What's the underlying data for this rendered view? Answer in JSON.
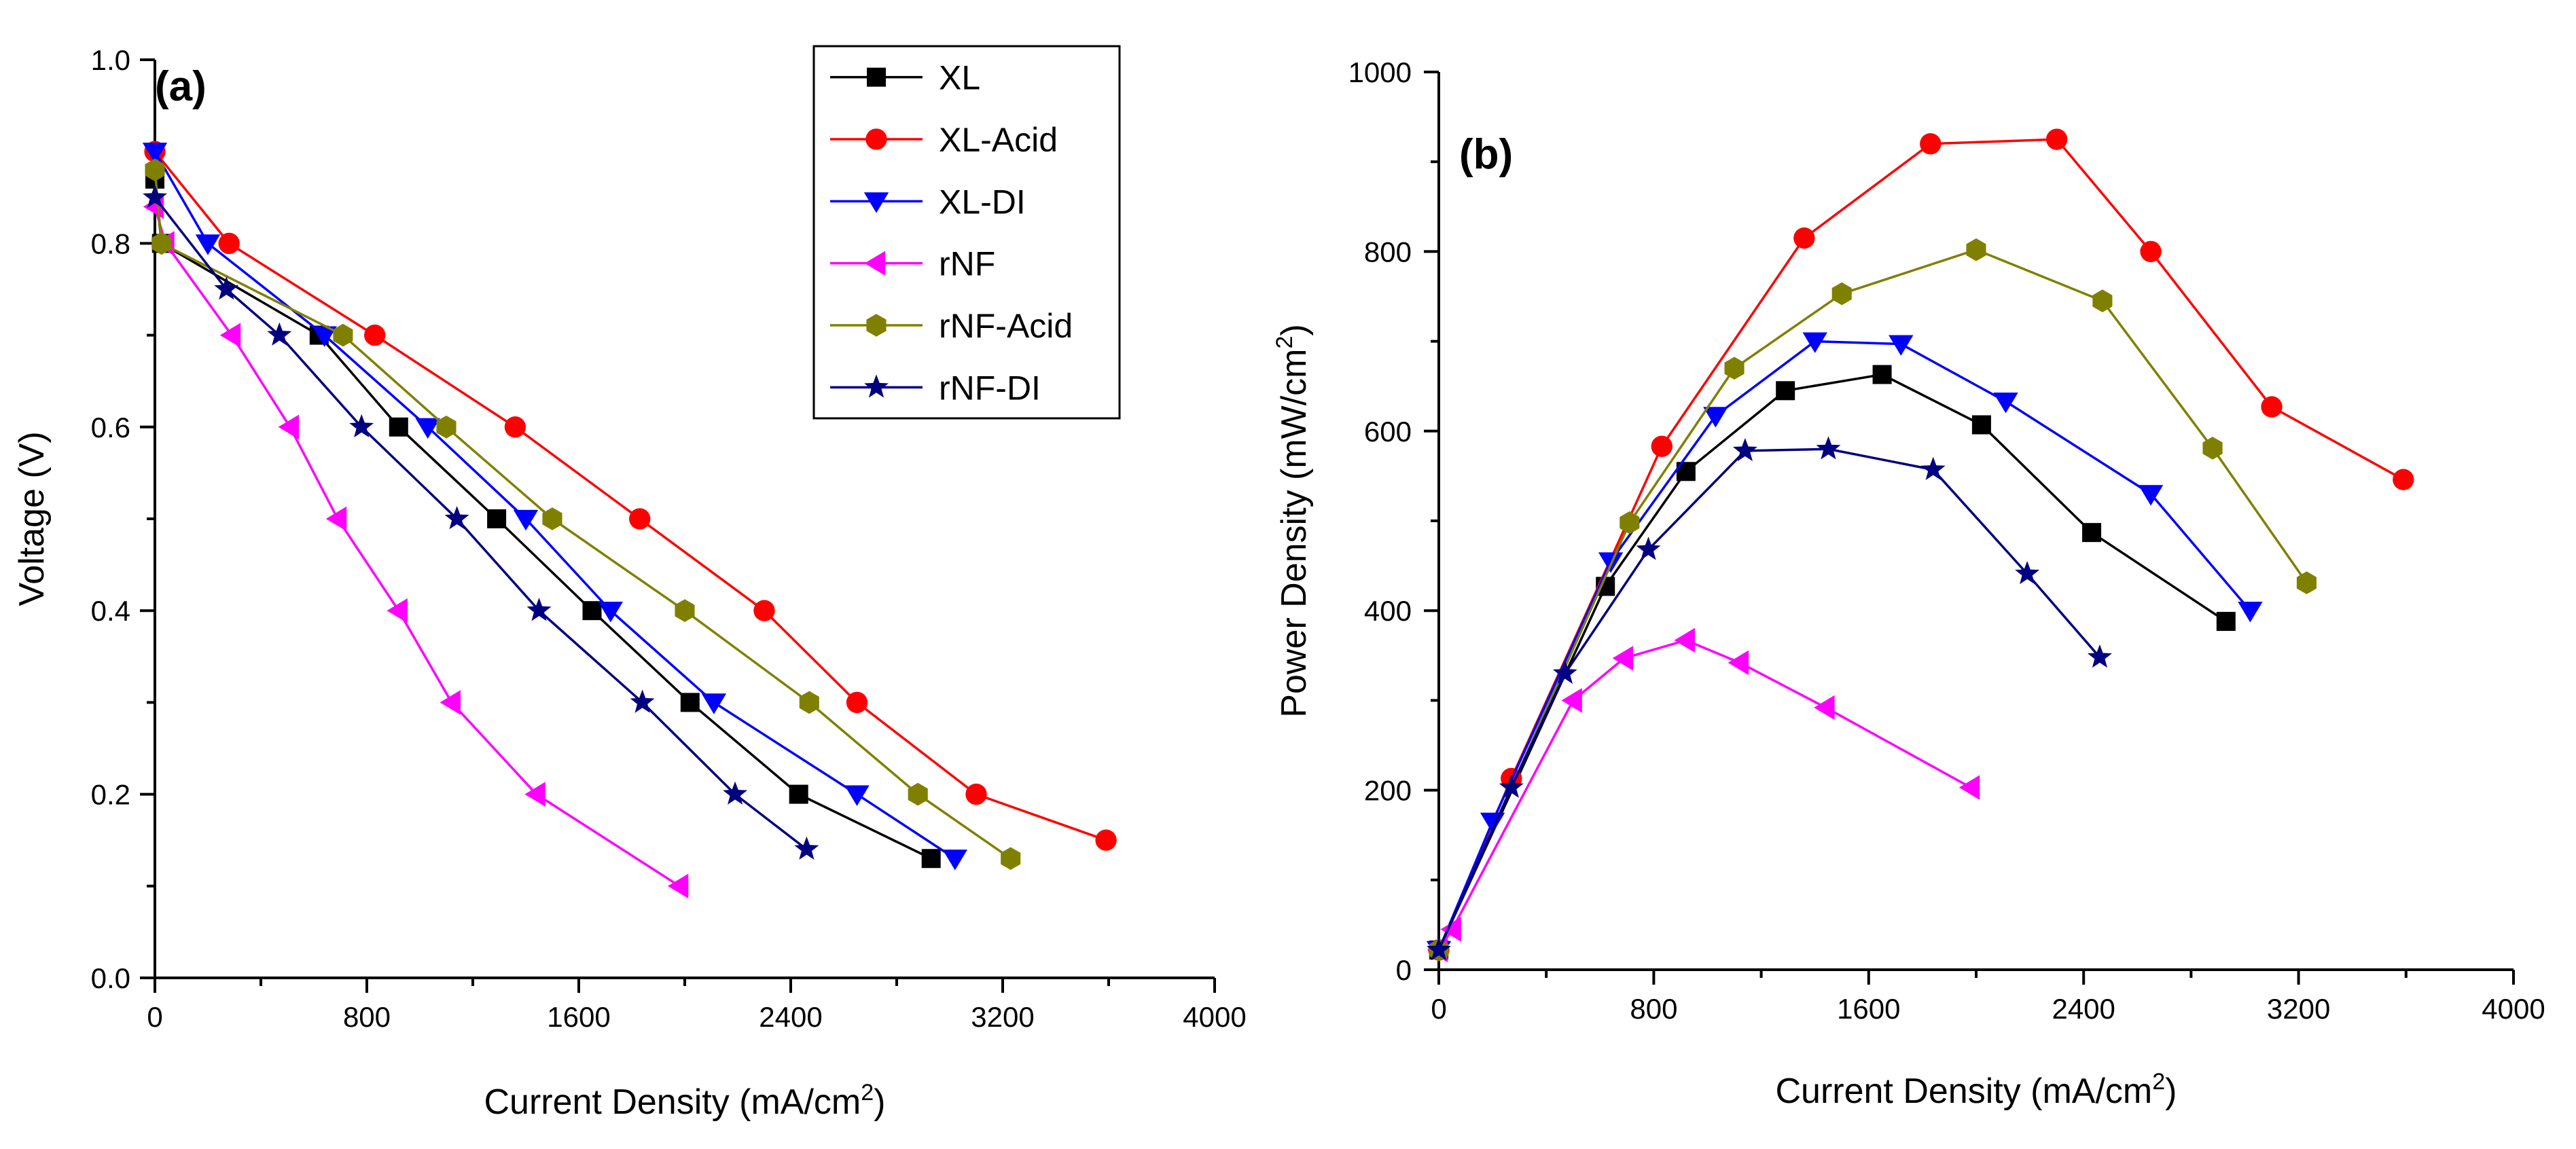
{
  "chart_data": [
    {
      "type": "line",
      "panel_label": "(a)",
      "xlabel": "Current Density (mA/cm",
      "xlabel_sup": "2",
      "xlabel_end": ")",
      "ylabel": "Voltage (V)",
      "xlim": [
        0,
        4000
      ],
      "ylim": [
        0,
        1.0
      ],
      "xticks": [
        "0",
        "800",
        "1600",
        "2400",
        "3200",
        "4000"
      ],
      "yticks": [
        "0.0",
        "0.2",
        "0.4",
        "0.6",
        "0.8",
        "1.0"
      ],
      "grid": false,
      "legend": "top-right",
      "series": [
        {
          "name": "XL",
          "color": "#000000",
          "marker": "square",
          "x": [
            0,
            25,
            620,
            920,
            1290,
            1650,
            2020,
            2430,
            2930
          ],
          "y": [
            0.87,
            0.8,
            0.7,
            0.6,
            0.5,
            0.4,
            0.3,
            0.2,
            0.13
          ]
        },
        {
          "name": "XL-Acid",
          "color": "#ff0000",
          "marker": "circle",
          "x": [
            0,
            280,
            830,
            1360,
            1830,
            2300,
            2650,
            3100,
            3590
          ],
          "y": [
            0.9,
            0.8,
            0.7,
            0.6,
            0.5,
            0.4,
            0.3,
            0.2,
            0.15
          ]
        },
        {
          "name": "XL-DI",
          "color": "#0000ff",
          "marker": "triangle-down",
          "x": [
            0,
            200,
            640,
            1030,
            1400,
            1720,
            2110,
            2650,
            3020
          ],
          "y": [
            0.9,
            0.8,
            0.7,
            0.6,
            0.5,
            0.4,
            0.3,
            0.2,
            0.13
          ]
        },
        {
          "name": "rNF",
          "color": "#ff00ff",
          "marker": "triangle-left",
          "x": [
            0,
            40,
            290,
            510,
            690,
            920,
            1120,
            1440,
            1980
          ],
          "y": [
            0.84,
            0.8,
            0.7,
            0.6,
            0.5,
            0.4,
            0.3,
            0.2,
            0.1
          ]
        },
        {
          "name": "rNF-Acid",
          "color": "#808000",
          "marker": "hexagon",
          "x": [
            0,
            25,
            710,
            1100,
            1500,
            2000,
            2470,
            2880,
            3230
          ],
          "y": [
            0.88,
            0.8,
            0.7,
            0.6,
            0.5,
            0.4,
            0.3,
            0.2,
            0.13
          ]
        },
        {
          "name": "rNF-DI",
          "color": "#000080",
          "marker": "star",
          "x": [
            0,
            270,
            470,
            780,
            1140,
            1450,
            1840,
            2190,
            2460
          ],
          "y": [
            0.85,
            0.75,
            0.7,
            0.6,
            0.5,
            0.4,
            0.3,
            0.2,
            0.14
          ]
        }
      ]
    },
    {
      "type": "line",
      "panel_label": "(b)",
      "xlabel": "Current Density (mA/cm",
      "xlabel_sup": "2",
      "xlabel_end": ")",
      "ylabel": "Power Density (mW/cm",
      "ylabel_sup": "2",
      "ylabel_end": ")",
      "xlim": [
        0,
        4000
      ],
      "ylim": [
        0,
        1000
      ],
      "xticks": [
        "0",
        "800",
        "1600",
        "2400",
        "3200",
        "4000"
      ],
      "yticks": [
        "0",
        "200",
        "400",
        "600",
        "800",
        "1000"
      ],
      "grid": false,
      "series": [
        {
          "name": "XL",
          "color": "#000000",
          "marker": "square",
          "x": [
            0,
            620,
            920,
            1290,
            1650,
            2020,
            2430,
            2930
          ],
          "y": [
            22,
            427,
            555,
            645,
            663,
            607,
            487,
            388
          ]
        },
        {
          "name": "XL-Acid",
          "color": "#ff0000",
          "marker": "circle",
          "x": [
            0,
            270,
            830,
            1360,
            1830,
            2300,
            2650,
            3100,
            3590
          ],
          "y": [
            22,
            213,
            583,
            815,
            920,
            925,
            800,
            627,
            546
          ]
        },
        {
          "name": "XL-DI",
          "color": "#0000ff",
          "marker": "triangle-down",
          "x": [
            0,
            200,
            640,
            1030,
            1400,
            1720,
            2110,
            2650,
            3020
          ],
          "y": [
            22,
            165,
            455,
            617,
            700,
            697,
            633,
            530,
            400
          ]
        },
        {
          "name": "rNF",
          "color": "#ff00ff",
          "marker": "triangle-left",
          "x": [
            0,
            50,
            500,
            690,
            920,
            1120,
            1440,
            1980
          ],
          "y": [
            22,
            45,
            300,
            347,
            367,
            342,
            292,
            203
          ]
        },
        {
          "name": "rNF-Acid",
          "color": "#808000",
          "marker": "hexagon",
          "x": [
            0,
            710,
            1100,
            1500,
            2000,
            2470,
            2880,
            3230
          ],
          "y": [
            22,
            498,
            670,
            753,
            802,
            745,
            581,
            431
          ]
        },
        {
          "name": "rNF-DI",
          "color": "#000080",
          "marker": "star",
          "x": [
            0,
            270,
            470,
            780,
            1140,
            1450,
            1840,
            2190,
            2460
          ],
          "y": [
            22,
            203,
            330,
            468,
            578,
            580,
            557,
            441,
            348
          ]
        }
      ]
    }
  ]
}
